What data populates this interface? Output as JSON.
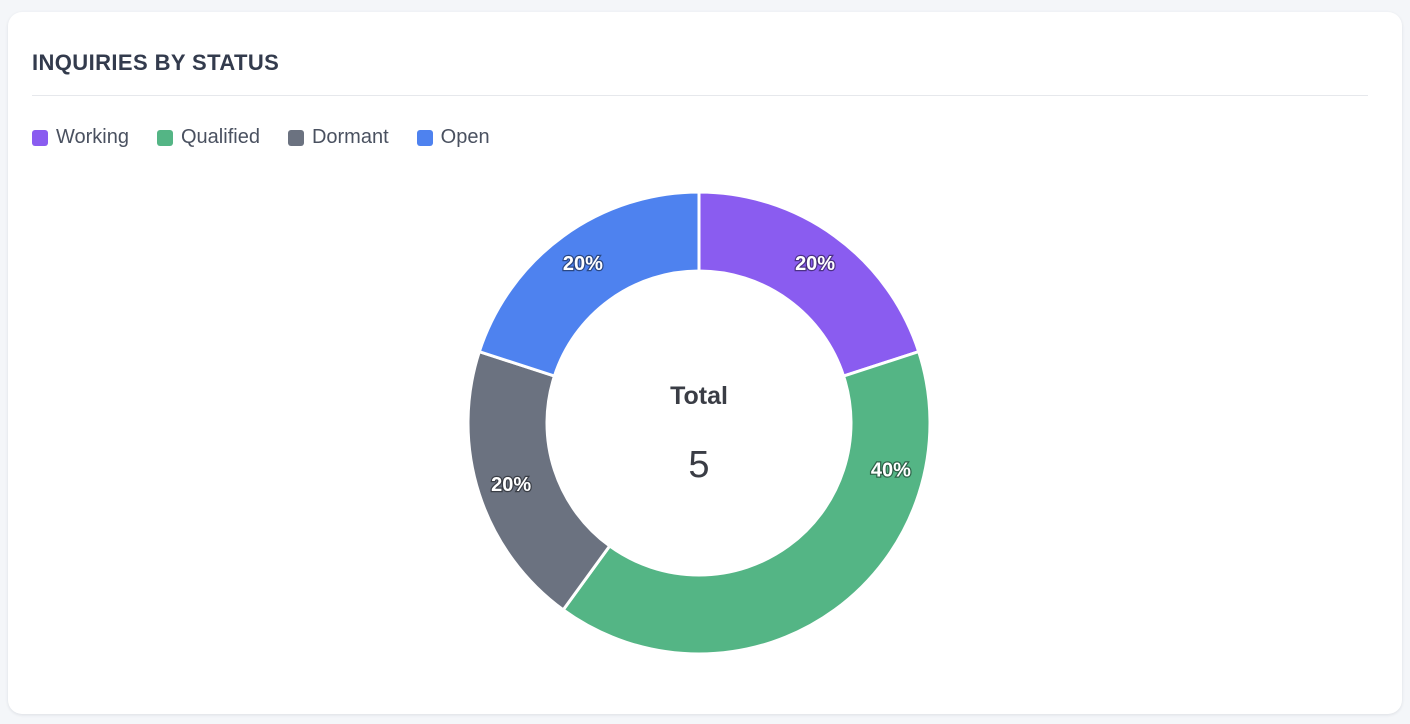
{
  "card": {
    "title": "INQUIRIES BY STATUS"
  },
  "center": {
    "label": "Total",
    "value": "5"
  },
  "chart_data": {
    "type": "pie",
    "style": "donut",
    "title": "INQUIRIES BY STATUS",
    "legend_position": "top-left",
    "categories": [
      "Working",
      "Qualified",
      "Dormant",
      "Open"
    ],
    "values": [
      1,
      2,
      1,
      1
    ],
    "percent_labels": [
      "20%",
      "40%",
      "20%",
      "20%"
    ],
    "colors": [
      "#8a5cf0",
      "#54b585",
      "#6b7280",
      "#4e82ef"
    ],
    "total": 5
  }
}
